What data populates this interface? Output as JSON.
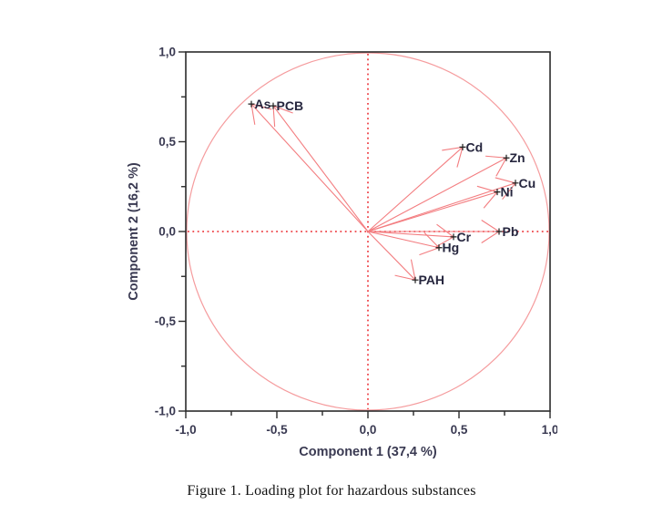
{
  "figure": {
    "caption": "Figure 1. Loading plot for hazardous substances"
  },
  "chart_data": {
    "type": "scatter",
    "subtype": "pca-loading-plot",
    "title": "",
    "xlabel": "Component 1 (37,4 %)",
    "ylabel": "Component 2 (16,2 %)",
    "xlim": [
      -1.0,
      1.0
    ],
    "ylim": [
      -1.0,
      1.0
    ],
    "grid": false,
    "unit_circle": true,
    "zero_crosshair_dotted": true,
    "legend": "none",
    "x_ticks": [
      {
        "v": -1.0,
        "label": "-1,0"
      },
      {
        "v": -0.5,
        "label": "-0,5"
      },
      {
        "v": 0.0,
        "label": "0,0"
      },
      {
        "v": 0.5,
        "label": "0,5"
      },
      {
        "v": 1.0,
        "label": "1,0"
      }
    ],
    "y_ticks": [
      {
        "v": 1.0,
        "label": "1,0"
      },
      {
        "v": 0.5,
        "label": "0,5"
      },
      {
        "v": 0.0,
        "label": "0,0"
      },
      {
        "v": -0.5,
        "label": "-0,5"
      },
      {
        "v": -1.0,
        "label": "-1,0"
      }
    ],
    "minor_ticks": [
      -0.75,
      -0.25,
      0.25,
      0.75
    ],
    "points": [
      {
        "label": "As",
        "x": -0.64,
        "y": 0.71
      },
      {
        "label": "PCB",
        "x": -0.52,
        "y": 0.7
      },
      {
        "label": "Cd",
        "x": 0.52,
        "y": 0.47
      },
      {
        "label": "Zn",
        "x": 0.76,
        "y": 0.41
      },
      {
        "label": "Cu",
        "x": 0.81,
        "y": 0.27
      },
      {
        "label": "Ni",
        "x": 0.71,
        "y": 0.22
      },
      {
        "label": "Pb",
        "x": 0.72,
        "y": 0.0
      },
      {
        "label": "Cr",
        "x": 0.47,
        "y": -0.03
      },
      {
        "label": "Hg",
        "x": 0.39,
        "y": -0.09
      },
      {
        "label": "PAH",
        "x": 0.26,
        "y": -0.27
      }
    ],
    "colors": {
      "arrow": "#f37d80",
      "circle": "#f59c9e",
      "crosshair": "#ee4348",
      "frame": "#2b2b2b",
      "tick_text": "#3a3a52",
      "point_label": "#26263e",
      "point_marker": "#1d1d1d",
      "caption_text": "#111111"
    }
  }
}
